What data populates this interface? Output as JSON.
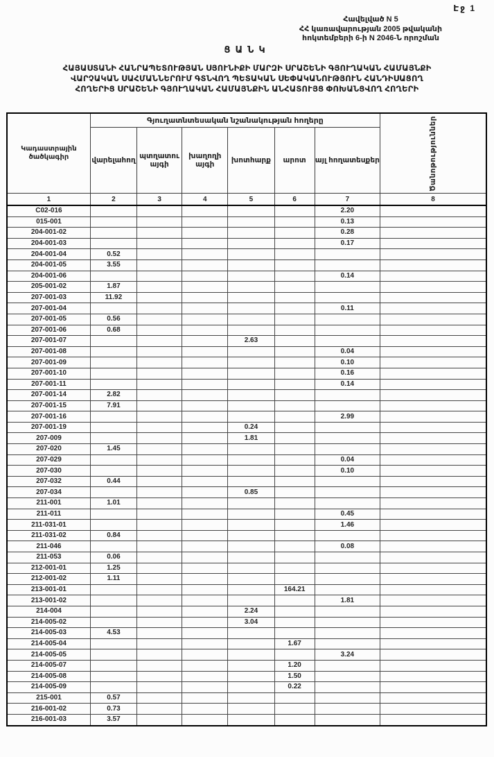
{
  "page": {
    "page_label": "Էջ 1"
  },
  "appendix": {
    "line1": "Հավելված N 5",
    "line2": "ՀՀ կառավարության 2005 թվականի",
    "line3": "հոկտեմբերի 6-ի N 2046-Ն որոշման"
  },
  "title": "ՑԱՆԿ",
  "subtitle": {
    "line1": "ՀԱՅԱՍՏԱՆԻ ՀԱՆՐԱՊԵՏՈՒԹՅԱՆ ՍՅՈՒՆԻՔԻ ՄԱՐԶԻ ՍՐԱՇԵՆԻ ԳՅՈՒՂԱԿԱՆ ՀԱՄԱՅՆՔԻ",
    "line2": "ՎԱՐՉԱԿԱՆ ՍԱՀՄԱՆՆԵՐՈՒՄ ԳՏՆՎՈՂ ՊԵՏԱԿԱՆ ՍԵՓԱԿԱՆՈՒԹՅՈՒՆ ՀԱՆԴԻՍԱՑՈՂ",
    "line3": "ՀՈՂԵՐԻՑ ՍՐԱՇԵՆԻ ԳՅՈՒՂԱԿԱՆ ՀԱՄԱՅՆՔԻՆ ԱՆՀԱՏՈՒՅՑ ՓՈԽԱՆՑՎՈՂ ՀՈՂԵՐԻ"
  },
  "table": {
    "col1_header": "Կադաստրային ծածկագիր",
    "group_header": "Գյուղատնտեսական նշանակության հողերը",
    "sub_headers": [
      "վարելահող",
      "պտղատու այգի",
      "խաղողի այգի",
      "խոտհարք",
      "արոտ",
      "այլ հողատեսքեր"
    ],
    "notes_header": "Ծանոթություններ",
    "number_row": [
      "1",
      "2",
      "3",
      "4",
      "5",
      "6",
      "7",
      "8"
    ],
    "rows": [
      [
        "C02-016",
        "",
        "",
        "",
        "",
        "",
        "2.20",
        ""
      ],
      [
        "015-001",
        "",
        "",
        "",
        "",
        "",
        "0.13",
        ""
      ],
      [
        "204-001-02",
        "",
        "",
        "",
        "",
        "",
        "0.28",
        ""
      ],
      [
        "204-001-03",
        "",
        "",
        "",
        "",
        "",
        "0.17",
        ""
      ],
      [
        "204-001-04",
        "0.52",
        "",
        "",
        "",
        "",
        "",
        ""
      ],
      [
        "204-001-05",
        "3.55",
        "",
        "",
        "",
        "",
        "",
        ""
      ],
      [
        "204-001-06",
        "",
        "",
        "",
        "",
        "",
        "0.14",
        ""
      ],
      [
        "205-001-02",
        "1.87",
        "",
        "",
        "",
        "",
        "",
        ""
      ],
      [
        "207-001-03",
        "11.92",
        "",
        "",
        "",
        "",
        "",
        ""
      ],
      [
        "207-001-04",
        "",
        "",
        "",
        "",
        "",
        "0.11",
        ""
      ],
      [
        "207-001-05",
        "0.56",
        "",
        "",
        "",
        "",
        "",
        ""
      ],
      [
        "207-001-06",
        "0.68",
        "",
        "",
        "",
        "",
        "",
        ""
      ],
      [
        "207-001-07",
        "",
        "",
        "",
        "2.63",
        "",
        "",
        ""
      ],
      [
        "207-001-08",
        "",
        "",
        "",
        "",
        "",
        "0.04",
        ""
      ],
      [
        "207-001-09",
        "",
        "",
        "",
        "",
        "",
        "0.10",
        ""
      ],
      [
        "207-001-10",
        "",
        "",
        "",
        "",
        "",
        "0.16",
        ""
      ],
      [
        "207-001-11",
        "",
        "",
        "",
        "",
        "",
        "0.14",
        ""
      ],
      [
        "207-001-14",
        "2.82",
        "",
        "",
        "",
        "",
        "",
        ""
      ],
      [
        "207-001-15",
        "7.91",
        "",
        "",
        "",
        "",
        "",
        ""
      ],
      [
        "207-001-16",
        "",
        "",
        "",
        "",
        "",
        "2.99",
        ""
      ],
      [
        "207-001-19",
        "",
        "",
        "",
        "0.24",
        "",
        "",
        ""
      ],
      [
        "207-009",
        "",
        "",
        "",
        "1.81",
        "",
        "",
        ""
      ],
      [
        "207-020",
        "1.45",
        "",
        "",
        "",
        "",
        "",
        ""
      ],
      [
        "207-029",
        "",
        "",
        "",
        "",
        "",
        "0.04",
        ""
      ],
      [
        "207-030",
        "",
        "",
        "",
        "",
        "",
        "0.10",
        ""
      ],
      [
        "207-032",
        "0.44",
        "",
        "",
        "",
        "",
        "",
        ""
      ],
      [
        "207-034",
        "",
        "",
        "",
        "0.85",
        "",
        "",
        ""
      ],
      [
        "211-001",
        "1.01",
        "",
        "",
        "",
        "",
        "",
        ""
      ],
      [
        "211-011",
        "",
        "",
        "",
        "",
        "",
        "0.45",
        ""
      ],
      [
        "211-031-01",
        "",
        "",
        "",
        "",
        "",
        "1.46",
        ""
      ],
      [
        "211-031-02",
        "0.84",
        "",
        "",
        "",
        "",
        "",
        ""
      ],
      [
        "211-046",
        "",
        "",
        "",
        "",
        "",
        "0.08",
        ""
      ],
      [
        "211-053",
        "0.06",
        "",
        "",
        "",
        "",
        "",
        ""
      ],
      [
        "212-001-01",
        "1.25",
        "",
        "",
        "",
        "",
        "",
        ""
      ],
      [
        "212-001-02",
        "1.11",
        "",
        "",
        "",
        "",
        "",
        ""
      ],
      [
        "213-001-01",
        "",
        "",
        "",
        "",
        "164.21",
        "",
        ""
      ],
      [
        "213-001-02",
        "",
        "",
        "",
        "",
        "",
        "1.81",
        ""
      ],
      [
        "214-004",
        "",
        "",
        "",
        "2.24",
        "",
        "",
        ""
      ],
      [
        "214-005-02",
        "",
        "",
        "",
        "3.04",
        "",
        "",
        ""
      ],
      [
        "214-005-03",
        "4.53",
        "",
        "",
        "",
        "",
        "",
        ""
      ],
      [
        "214-005-04",
        "",
        "",
        "",
        "",
        "1.67",
        "",
        ""
      ],
      [
        "214-005-05",
        "",
        "",
        "",
        "",
        "",
        "3.24",
        ""
      ],
      [
        "214-005-07",
        "",
        "",
        "",
        "",
        "1.20",
        "",
        ""
      ],
      [
        "214-005-08",
        "",
        "",
        "",
        "",
        "1.50",
        "",
        ""
      ],
      [
        "214-005-09",
        "",
        "",
        "",
        "",
        "0.22",
        "",
        ""
      ],
      [
        "215-001",
        "0.57",
        "",
        "",
        "",
        "",
        "",
        ""
      ],
      [
        "216-001-02",
        "0.73",
        "",
        "",
        "",
        "",
        "",
        ""
      ],
      [
        "216-001-03",
        "3.57",
        "",
        "",
        "",
        "",
        "",
        ""
      ]
    ]
  }
}
